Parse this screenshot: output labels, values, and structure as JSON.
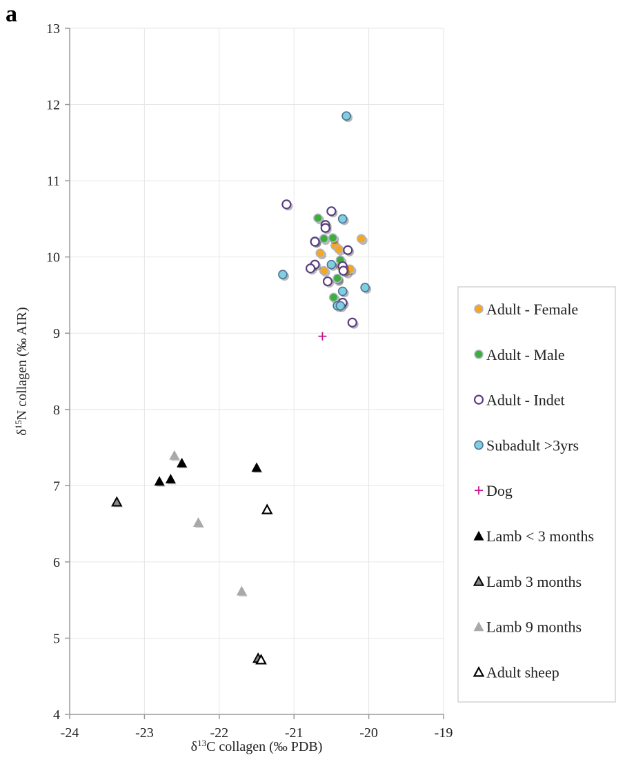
{
  "panel_label": "a",
  "chart_data": {
    "type": "scatter",
    "title": "",
    "xlabel_parts": [
      "δ",
      "13",
      "C collagen (‰ PDB)"
    ],
    "ylabel_parts": [
      "δ",
      "15",
      "N collagen (‰ AIR)"
    ],
    "xlim": [
      -24,
      -19
    ],
    "ylim": [
      4,
      13
    ],
    "xticks": [
      -24,
      -23,
      -22,
      -21,
      -20,
      -19
    ],
    "yticks": [
      4,
      5,
      6,
      7,
      8,
      9,
      10,
      11,
      12,
      13
    ],
    "grid": true,
    "legend_position": "right",
    "series": [
      {
        "name": "Adult - Female",
        "marker": "circle",
        "fill": "#F5A623",
        "stroke": "#B0B7C8",
        "points": [
          {
            "x": -20.72,
            "y": 10.21
          },
          {
            "x": -20.65,
            "y": 10.05
          },
          {
            "x": -20.6,
            "y": 9.82
          },
          {
            "x": -20.45,
            "y": 10.15
          },
          {
            "x": -20.4,
            "y": 10.1
          },
          {
            "x": -20.38,
            "y": 9.88
          },
          {
            "x": -20.3,
            "y": 9.8
          },
          {
            "x": -20.25,
            "y": 9.84
          },
          {
            "x": -20.1,
            "y": 10.24
          },
          {
            "x": -20.42,
            "y": 9.7
          }
        ]
      },
      {
        "name": "Adult - Male",
        "marker": "circle",
        "fill": "#3DAE3A",
        "stroke": "#B0B7C8",
        "points": [
          {
            "x": -20.68,
            "y": 10.51
          },
          {
            "x": -20.6,
            "y": 10.24
          },
          {
            "x": -20.48,
            "y": 10.25
          },
          {
            "x": -20.38,
            "y": 9.96
          },
          {
            "x": -20.42,
            "y": 9.72
          },
          {
            "x": -20.47,
            "y": 9.47
          }
        ]
      },
      {
        "name": "Adult - Indet",
        "marker": "circle-open",
        "fill": "#FFFFFF",
        "stroke": "#5B3F7E",
        "points": [
          {
            "x": -21.1,
            "y": 10.69
          },
          {
            "x": -20.5,
            "y": 10.6
          },
          {
            "x": -20.58,
            "y": 10.42
          },
          {
            "x": -20.58,
            "y": 10.38
          },
          {
            "x": -20.72,
            "y": 10.2
          },
          {
            "x": -20.28,
            "y": 10.09
          },
          {
            "x": -20.72,
            "y": 9.9
          },
          {
            "x": -20.78,
            "y": 9.85
          },
          {
            "x": -20.35,
            "y": 9.88
          },
          {
            "x": -20.34,
            "y": 9.82
          },
          {
            "x": -20.55,
            "y": 9.68
          },
          {
            "x": -20.35,
            "y": 9.4
          },
          {
            "x": -20.22,
            "y": 9.14
          }
        ]
      },
      {
        "name": "Subadult >3yrs",
        "marker": "circle",
        "fill": "#7ED0DE",
        "stroke": "#4F6F96",
        "points": [
          {
            "x": -20.3,
            "y": 11.85
          },
          {
            "x": -20.35,
            "y": 10.5
          },
          {
            "x": -20.5,
            "y": 9.9
          },
          {
            "x": -21.15,
            "y": 9.77
          },
          {
            "x": -20.05,
            "y": 9.6
          },
          {
            "x": -20.35,
            "y": 9.55
          },
          {
            "x": -20.42,
            "y": 9.36
          },
          {
            "x": -20.38,
            "y": 9.36
          }
        ]
      },
      {
        "name": "Dog",
        "marker": "plus",
        "fill": "#C2188C",
        "stroke": "#C2188C",
        "points": [
          {
            "x": -20.62,
            "y": 8.96
          }
        ]
      },
      {
        "name": "Lamb < 3 months",
        "marker": "triangle",
        "fill": "#000000",
        "stroke": "#000000",
        "points": [
          {
            "x": -22.8,
            "y": 7.06
          },
          {
            "x": -22.65,
            "y": 7.09
          },
          {
            "x": -22.5,
            "y": 7.3
          },
          {
            "x": -21.5,
            "y": 7.24
          }
        ]
      },
      {
        "name": "Lamb 3 months",
        "marker": "triangle-half",
        "fill": "#8A8A8A",
        "stroke": "#000000",
        "points": [
          {
            "x": -23.37,
            "y": 6.79
          },
          {
            "x": -21.48,
            "y": 4.74
          }
        ]
      },
      {
        "name": "Lamb 9 months",
        "marker": "triangle",
        "fill": "#A9A9A9",
        "stroke": "#A9A9A9",
        "points": [
          {
            "x": -22.6,
            "y": 7.4
          },
          {
            "x": -22.28,
            "y": 6.52
          },
          {
            "x": -21.7,
            "y": 5.62
          }
        ]
      },
      {
        "name": "Adult sheep",
        "marker": "triangle-open",
        "fill": "#FFFFFF",
        "stroke": "#000000",
        "points": [
          {
            "x": -21.36,
            "y": 6.69
          },
          {
            "x": -21.44,
            "y": 4.72
          }
        ]
      }
    ]
  }
}
